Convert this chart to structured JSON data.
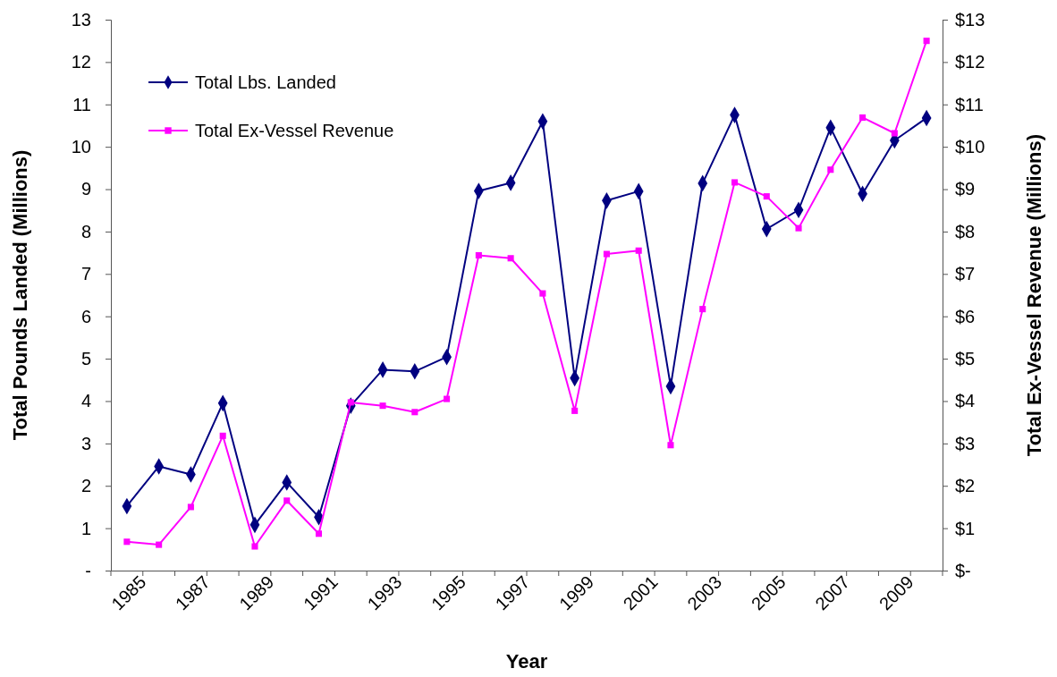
{
  "chart_data": {
    "type": "line",
    "xlabel": "Year",
    "ylabel": "Total Pounds Landed (Millions)",
    "y2label": "Total Ex-Vessel Revenue (Millions)",
    "categories": [
      "1985",
      null,
      "1987",
      null,
      "1989",
      null,
      "1991",
      null,
      "1993",
      null,
      "1995",
      null,
      "1997",
      null,
      "1999",
      null,
      "2001",
      null,
      "2003",
      null,
      "2005",
      null,
      "2007",
      null,
      "2009",
      null
    ],
    "series": [
      {
        "name": "Total Lbs. Landed",
        "color": "#000080",
        "marker": "diamond",
        "values": [
          1.52,
          2.46,
          2.27,
          3.95,
          1.08,
          2.08,
          1.26,
          3.89,
          4.74,
          4.7,
          5.04,
          8.96,
          9.15,
          10.6,
          4.54,
          8.73,
          8.95,
          4.35,
          9.14,
          10.75,
          8.06,
          8.51,
          10.45,
          8.89,
          10.15,
          10.68
        ]
      },
      {
        "name": "Total Ex-Vessel Revenue",
        "color": "#ff00ff",
        "marker": "square",
        "axis": "y2",
        "values": [
          0.68,
          0.61,
          1.5,
          3.18,
          0.57,
          1.65,
          0.87,
          3.97,
          3.89,
          3.74,
          4.05,
          7.44,
          7.37,
          6.54,
          3.77,
          7.47,
          7.55,
          2.96,
          6.17,
          9.16,
          8.83,
          8.08,
          9.46,
          10.69,
          10.32,
          12.5
        ]
      }
    ],
    "ylim": [
      0,
      13
    ],
    "yticks": [
      {
        "value": 0,
        "label": "-"
      },
      1,
      2,
      3,
      4,
      5,
      6,
      7,
      8,
      9,
      10,
      11,
      12,
      13
    ],
    "y2lim": [
      0,
      13
    ],
    "y2ticks": [
      {
        "value": 0,
        "label": "$-"
      },
      {
        "value": 1,
        "label": "$1"
      },
      {
        "value": 2,
        "label": "$2"
      },
      {
        "value": 3,
        "label": "$3"
      },
      {
        "value": 4,
        "label": "$4"
      },
      {
        "value": 5,
        "label": "$5"
      },
      {
        "value": 6,
        "label": "$6"
      },
      {
        "value": 7,
        "label": "$7"
      },
      {
        "value": 8,
        "label": "$8"
      },
      {
        "value": 9,
        "label": "$9"
      },
      {
        "value": 10,
        "label": "$10"
      },
      {
        "value": 11,
        "label": "$11"
      },
      {
        "value": 12,
        "label": "$12"
      },
      {
        "value": 13,
        "label": "$13"
      }
    ],
    "legend": "top left",
    "grid": false,
    "line_style": "solid"
  }
}
